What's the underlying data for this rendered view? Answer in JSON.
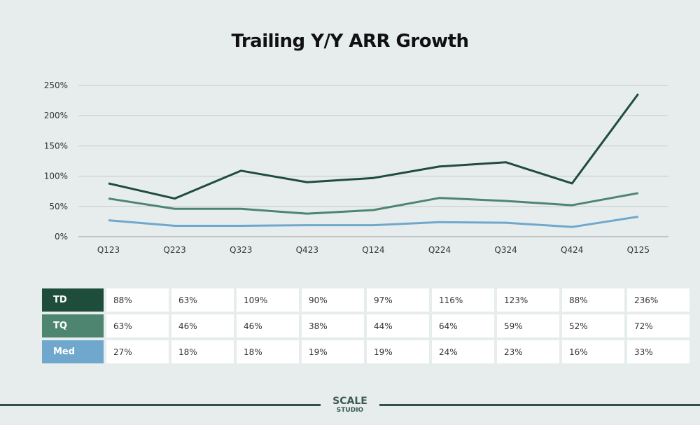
{
  "chart_data": {
    "type": "line",
    "title": "Trailing Y/Y ARR Growth",
    "categories": [
      "Q123",
      "Q223",
      "Q323",
      "Q423",
      "Q124",
      "Q224",
      "Q324",
      "Q424",
      "Q125"
    ],
    "yticks": [
      "0%",
      "50%",
      "100%",
      "150%",
      "200%",
      "250%"
    ],
    "ylim": [
      0,
      250
    ],
    "grid": true,
    "series": [
      {
        "name": "TD",
        "color": "#1f4d3c",
        "values": [
          88,
          63,
          109,
          90,
          97,
          116,
          123,
          88,
          236
        ],
        "labels": [
          "88%",
          "63%",
          "109%",
          "90%",
          "97%",
          "116%",
          "123%",
          "88%",
          "236%"
        ]
      },
      {
        "name": "TQ",
        "color": "#4e8570",
        "values": [
          63,
          46,
          46,
          38,
          44,
          64,
          59,
          52,
          72
        ],
        "labels": [
          "63%",
          "46%",
          "46%",
          "38%",
          "44%",
          "64%",
          "59%",
          "52%",
          "72%"
        ]
      },
      {
        "name": "Med",
        "color": "#6fa8cc",
        "values": [
          27,
          18,
          18,
          19,
          19,
          24,
          23,
          16,
          33
        ],
        "labels": [
          "27%",
          "18%",
          "18%",
          "19%",
          "19%",
          "24%",
          "23%",
          "16%",
          "33%"
        ]
      }
    ]
  },
  "logo": {
    "line1": "SCALE",
    "line2": "STUDIO"
  }
}
